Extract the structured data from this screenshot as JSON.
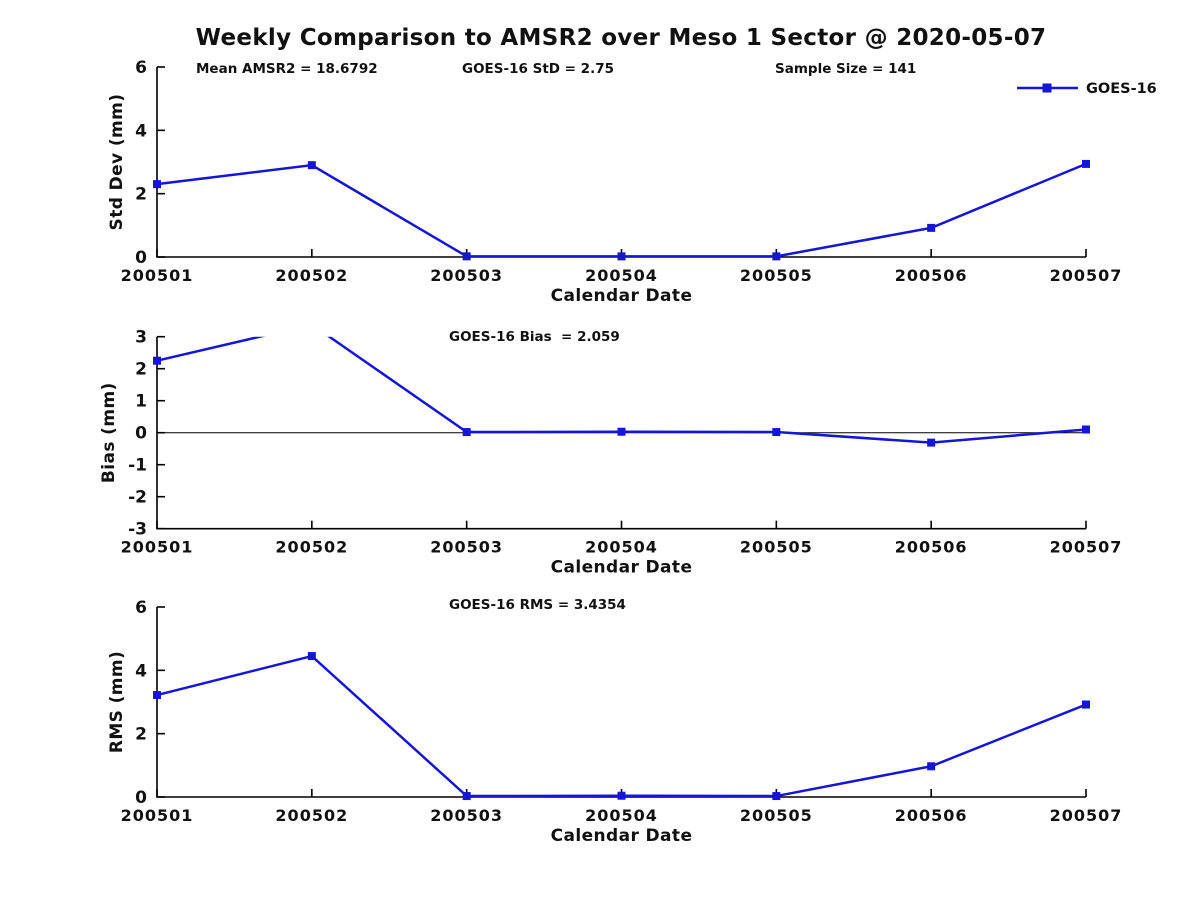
{
  "title": "Weekly Comparison to AMSR2 over Meso 1 Sector @ 2020-05-07",
  "legend": {
    "label": "GOES-16"
  },
  "colors": {
    "series": "#1515d6",
    "axis": "#000000",
    "text": "#111111",
    "background": "#ffffff"
  },
  "chart_data": [
    {
      "type": "line",
      "name": "std-dev-subplot",
      "categories": [
        "200501",
        "200502",
        "200503",
        "200504",
        "200505",
        "200506",
        "200507"
      ],
      "series": [
        {
          "name": "GOES-16",
          "values": [
            2.3,
            2.9,
            0.02,
            0.02,
            0.02,
            0.92,
            2.94
          ],
          "marker": "square",
          "color": "#1515d6"
        }
      ],
      "xlabel": "Calendar Date",
      "ylabel": "Std Dev (mm)",
      "ylim": [
        0,
        6
      ],
      "yticks": [
        0,
        2,
        4,
        6
      ],
      "grid": false,
      "zero_line": false,
      "clip_to_axes": false,
      "legend_entries": [
        "GOES-16"
      ],
      "legend_position": "top-right",
      "annotations": [
        "Mean AMSR2 = 18.6792",
        "GOES-16 StD = 2.75",
        "Sample Size = 141"
      ]
    },
    {
      "type": "line",
      "name": "bias-subplot",
      "categories": [
        "200501",
        "200502",
        "200503",
        "200504",
        "200505",
        "200506",
        "200507"
      ],
      "series": [
        {
          "name": "GOES-16",
          "values": [
            2.25,
            3.38,
            0.02,
            0.03,
            0.02,
            -0.31,
            0.1
          ],
          "marker": "square",
          "color": "#1515d6"
        }
      ],
      "xlabel": "Calendar Date",
      "ylabel": "Bias (mm)",
      "ylim": [
        -3,
        3
      ],
      "yticks": [
        -3,
        -2,
        -1,
        0,
        1,
        2,
        3
      ],
      "grid": false,
      "zero_line": true,
      "clip_to_axes": true,
      "annotations": [
        "GOES-16 Bias  = 2.059"
      ]
    },
    {
      "type": "line",
      "name": "rms-subplot",
      "categories": [
        "200501",
        "200502",
        "200503",
        "200504",
        "200505",
        "200506",
        "200507"
      ],
      "series": [
        {
          "name": "GOES-16",
          "values": [
            3.22,
            4.45,
            0.03,
            0.04,
            0.03,
            0.97,
            2.92
          ],
          "marker": "square",
          "color": "#1515d6"
        }
      ],
      "xlabel": "Calendar Date",
      "ylabel": "RMS (mm)",
      "ylim": [
        0,
        6
      ],
      "yticks": [
        0,
        2,
        4,
        6
      ],
      "grid": false,
      "zero_line": false,
      "clip_to_axes": false,
      "annotations": [
        "GOES-16 RMS = 3.4354"
      ]
    }
  ]
}
